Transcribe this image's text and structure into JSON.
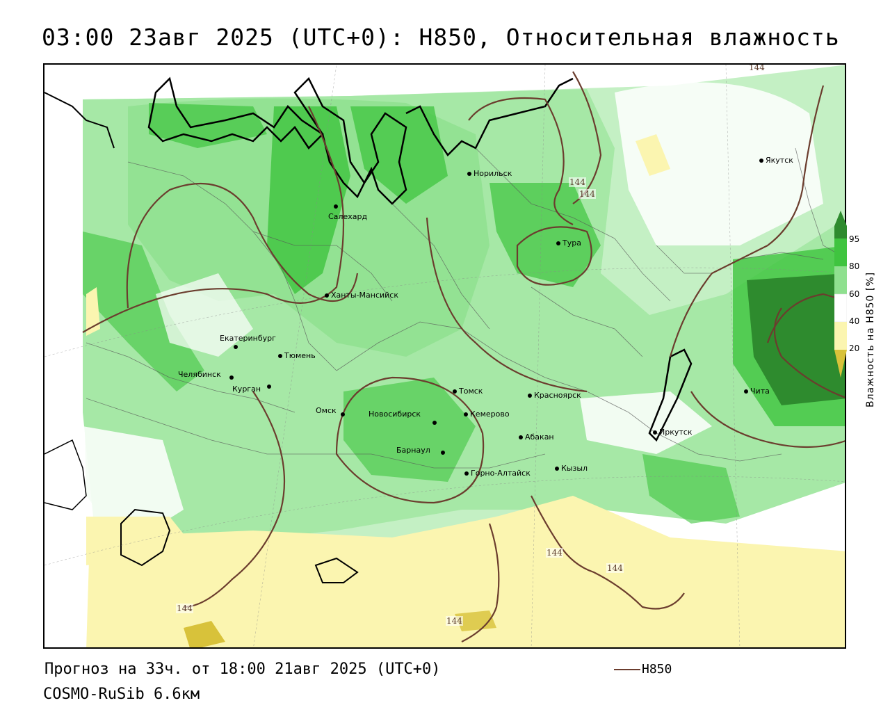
{
  "title": "03:00 23авг 2025 (UTC+0): H850, Относительная влажность",
  "footer": {
    "forecast": "Прогноз на 33ч. от 18:00 21авг 2025 (UTC+0)",
    "model": "COSMO-RuSib 6.6км",
    "line_legend_label": "H850"
  },
  "colorbar": {
    "title": "Влажность на H850 [%]",
    "ticks": [
      "95",
      "80",
      "60",
      "40",
      "20"
    ],
    "colors": {
      "c95": "#2e8b2e",
      "c80": "#3fc43f",
      "c60": "#8fe08f",
      "c40": "#ffffff",
      "c20": "#fbf5b0",
      "c0": "#d8c23a"
    }
  },
  "isoline_label": "144",
  "cities": {
    "norilsk": "Норильск",
    "salekhard": "Салехард",
    "yakutsk": "Якутск",
    "tura": "Тура",
    "khanty": "Ханты-Мансийск",
    "ekaterinburg": "Екатеринбург",
    "tyumen": "Тюмень",
    "chelyabinsk": "Челябинск",
    "kurgan": "Курган",
    "omsk": "Омск",
    "novosibirsk": "Новосибирск",
    "tomsk": "Томск",
    "kemerovo": "Кемерово",
    "krasnoyarsk": "Красноярск",
    "barnaul": "Барнаул",
    "abakan": "Абакан",
    "gorno": "Горно-Алтайск",
    "kyzyl": "Кызыл",
    "irkutsk": "Иркутск",
    "chita": "Чита"
  }
}
